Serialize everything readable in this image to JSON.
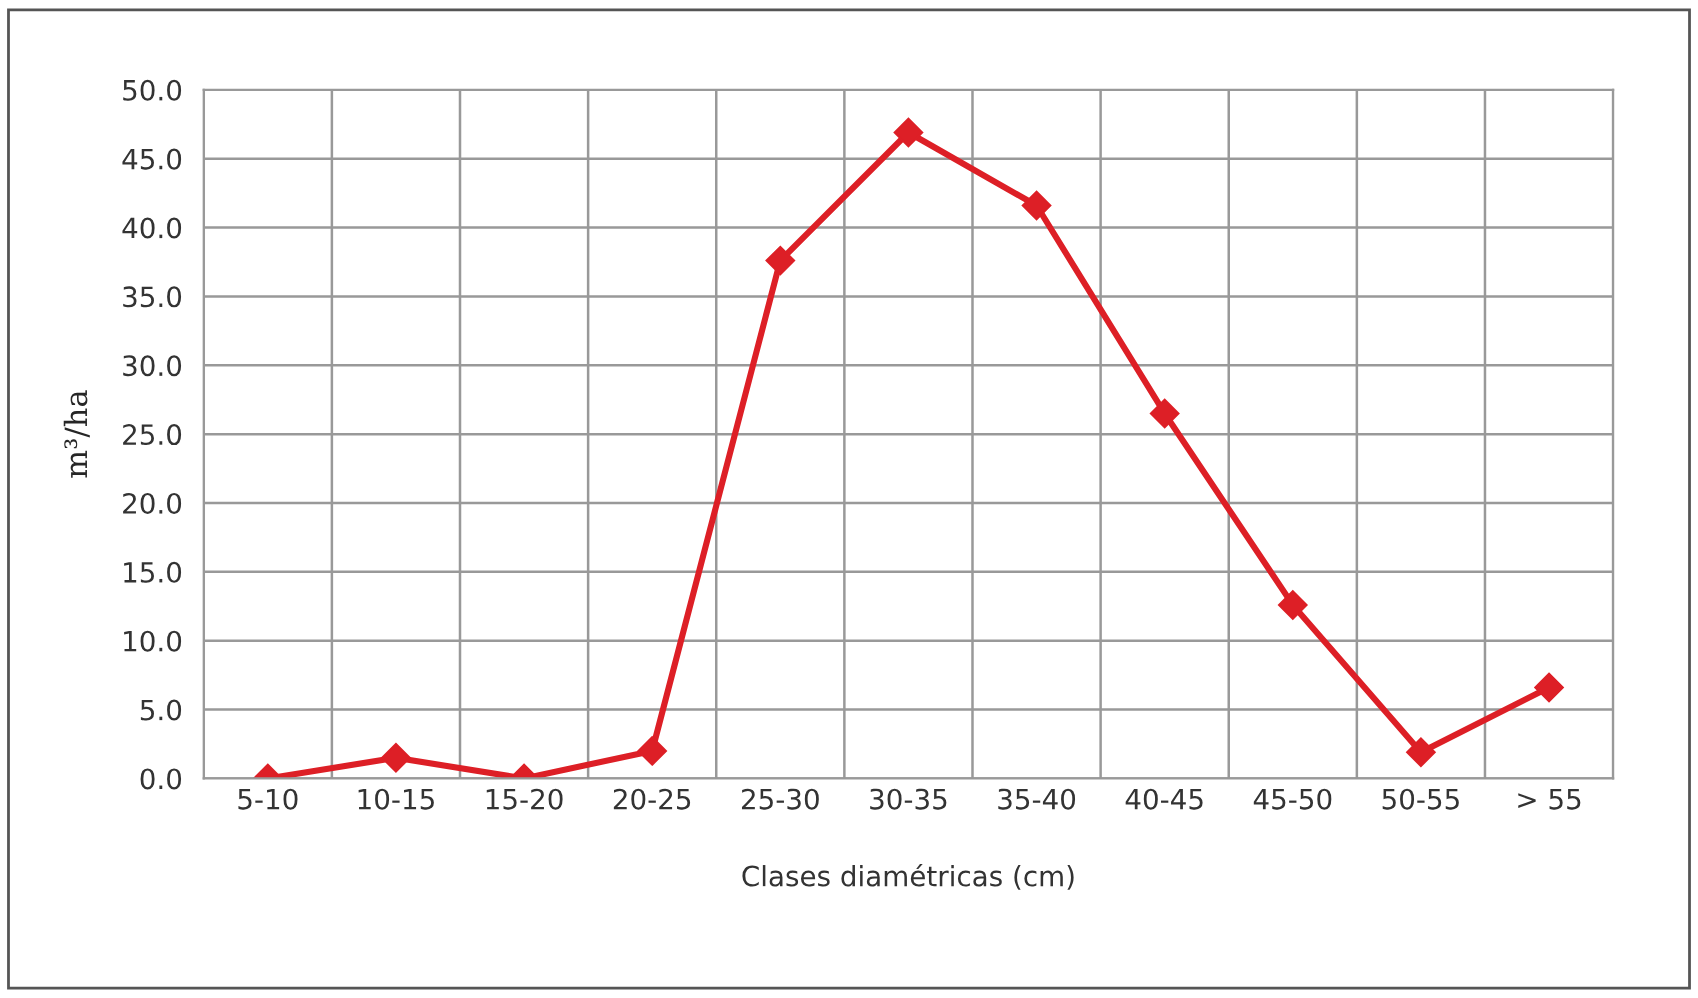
{
  "chart_data": {
    "type": "line",
    "xlabel": "Clases diamétricas (cm)",
    "ylabel": "m³/ha",
    "categories": [
      "5-10",
      "10-15",
      "15-20",
      "20-25",
      "25-30",
      "30-35",
      "35-40",
      "40-45",
      "45-50",
      "50-55",
      "> 55"
    ],
    "series": [
      {
        "color": "#dd1f26",
        "values": [
          0.0,
          1.5,
          0.0,
          2.0,
          37.6,
          46.9,
          41.6,
          26.5,
          12.6,
          1.9,
          6.6
        ]
      }
    ],
    "ylim": [
      0,
      50
    ],
    "yticks": [
      {
        "value": 0,
        "label": "0.0"
      },
      {
        "value": 5,
        "label": "5.0"
      },
      {
        "value": 10,
        "label": "10.0"
      },
      {
        "value": 15,
        "label": "15.0"
      },
      {
        "value": 20,
        "label": "20.0"
      },
      {
        "value": 25,
        "label": "25.0"
      },
      {
        "value": 30,
        "label": "30.0"
      },
      {
        "value": 35,
        "label": "35.0"
      },
      {
        "value": 40,
        "label": "40.0"
      },
      {
        "value": 45,
        "label": "45.0"
      },
      {
        "value": 50,
        "label": "50.0"
      }
    ],
    "grid": true,
    "marker": "diamond",
    "line_style": "solid"
  }
}
